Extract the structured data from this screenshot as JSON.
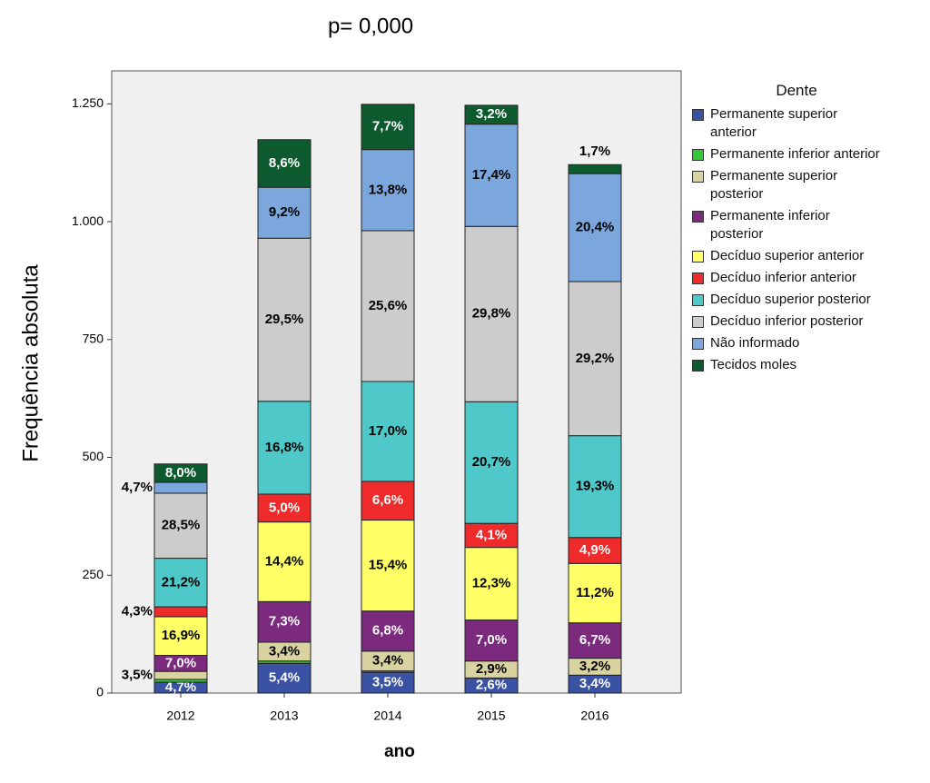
{
  "chart_data": {
    "type": "stacked_bar",
    "title": "p= 0,000",
    "x_label": "ano",
    "y_label": "Frequência absoluta",
    "legend_title": "Dente",
    "categories": [
      "2012",
      "2013",
      "2014",
      "2015",
      "2016"
    ],
    "ylim": [
      0,
      1320
    ],
    "yticks": [
      0,
      250,
      500,
      750,
      {
        "value": 1000,
        "label": "1.000"
      },
      {
        "value": 1250,
        "label": "1.250"
      }
    ],
    "series": [
      {
        "name": "Permanente  superior anterior",
        "color": "#3a52a4",
        "values": [
          23,
          63,
          44,
          32,
          38
        ],
        "percent_labels": [
          "4,7%",
          "5,4%",
          "3,5%",
          "2,6%",
          "3,4%"
        ]
      },
      {
        "name": "Permanente inferior anterior",
        "color": "#33c833",
        "values": [
          6,
          5,
          3,
          0,
          0
        ],
        "percent_labels": [
          null,
          null,
          null,
          null,
          null
        ]
      },
      {
        "name": "Permanente superior posterior",
        "color": "#d9d3a1",
        "values": [
          17,
          40,
          42,
          36,
          36
        ],
        "percent_labels": [
          "3,5%",
          "3,4%",
          "3,4%",
          "2,9%",
          "3,2%"
        ]
      },
      {
        "name": "Permanente inferior posterior",
        "color": "#7b2a7e",
        "values": [
          34,
          86,
          85,
          87,
          75
        ],
        "percent_labels": [
          "7,0%",
          "7,3%",
          "6,8%",
          "7,0%",
          "6,7%"
        ]
      },
      {
        "name": "Decíduo superior anterior",
        "color": "#ffff66",
        "values": [
          82,
          169,
          193,
          154,
          126
        ],
        "percent_labels": [
          "16,9%",
          "14,4%",
          "15,4%",
          "12,3%",
          "11,2%"
        ]
      },
      {
        "name": "Decíduo inferior anterior",
        "color": "#ee2a2a",
        "values": [
          21,
          59,
          82,
          51,
          55
        ],
        "percent_labels": [
          "4,3%",
          "5,0%",
          "6,6%",
          "4,1%",
          "4,9%"
        ]
      },
      {
        "name": "Decíduo superior posterior",
        "color": "#4ec8c8",
        "values": [
          103,
          197,
          212,
          258,
          216
        ],
        "percent_labels": [
          "21,2%",
          "16,8%",
          "17,0%",
          "20,7%",
          "19,3%"
        ]
      },
      {
        "name": "Decíduo inferior posterior",
        "color": "#cccccc",
        "values": [
          138,
          346,
          320,
          372,
          327
        ],
        "percent_labels": [
          "28,5%",
          "29,5%",
          "25,6%",
          "29,8%",
          "29,2%"
        ]
      },
      {
        "name": "Não informado",
        "color": "#7ba7dd",
        "values": [
          23,
          108,
          172,
          217,
          229
        ],
        "percent_labels": [
          "4,7%",
          "9,2%",
          "13,8%",
          "17,4%",
          "20,4%"
        ]
      },
      {
        "name": "Tecidos moles",
        "color": "#0d5a2e",
        "values": [
          39,
          101,
          96,
          40,
          19
        ],
        "percent_labels": [
          "8,0%",
          "8,6%",
          "7,7%",
          "3,2%",
          "1,7%"
        ]
      }
    ]
  }
}
